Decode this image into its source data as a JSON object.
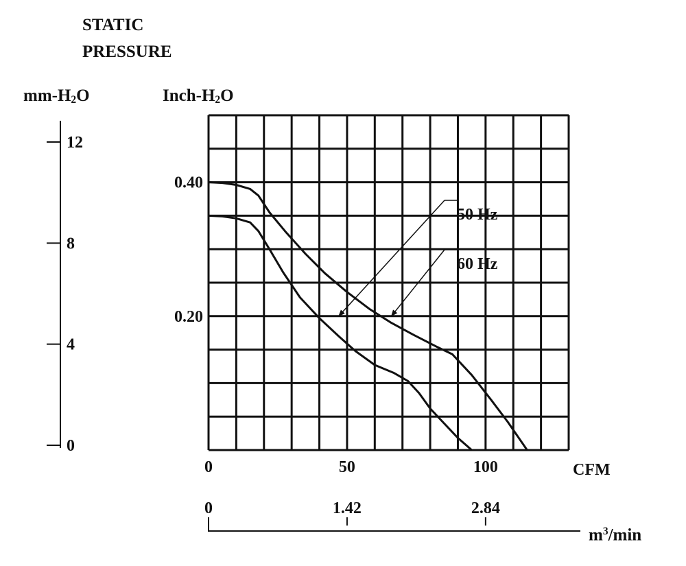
{
  "chart_data": {
    "type": "line",
    "title": "STATIC PRESSURE",
    "title_lines": [
      "STATIC",
      "PRESSURE"
    ],
    "y_left_unit": {
      "main": "mm-H",
      "sub": "2",
      "tail": "O"
    },
    "y_right_unit": {
      "main": "Inch-H",
      "sub": "2",
      "tail": "O"
    },
    "xlabel": "CFM",
    "xlabel2": {
      "main": "m",
      "sup": "3",
      "tail": "/min"
    },
    "xlim": [
      0,
      130
    ],
    "ylim": [
      0,
      0.5
    ],
    "grid": true,
    "x_ticks": [
      {
        "value": 0,
        "label": "0"
      },
      {
        "value": 50,
        "label": "50"
      },
      {
        "value": 100,
        "label": "100"
      }
    ],
    "y_ticks": [
      {
        "value": 0.4,
        "label": "0.40"
      },
      {
        "value": 0.2,
        "label": "0.20"
      }
    ],
    "mm_ticks": [
      {
        "value": 12,
        "label": "12"
      },
      {
        "value": 8,
        "label": "8"
      },
      {
        "value": 4,
        "label": "4"
      },
      {
        "value": 0,
        "label": "0"
      }
    ],
    "m3_ticks": [
      {
        "cfm": 0,
        "label": "0"
      },
      {
        "cfm": 50,
        "label": "1.42"
      },
      {
        "cfm": 100,
        "label": "2.84"
      }
    ],
    "series": [
      {
        "name": "50 Hz",
        "x": [
          0,
          5,
          10,
          15,
          18,
          22,
          27,
          33,
          40,
          47,
          53,
          60,
          67,
          72,
          76,
          80,
          85,
          90,
          95
        ],
        "y": [
          0.35,
          0.349,
          0.346,
          0.34,
          0.327,
          0.3,
          0.265,
          0.228,
          0.197,
          0.17,
          0.148,
          0.127,
          0.115,
          0.103,
          0.085,
          0.062,
          0.04,
          0.018,
          0.0
        ]
      },
      {
        "name": "60 Hz",
        "x": [
          0,
          5,
          10,
          15,
          18,
          22,
          28,
          35,
          42,
          50,
          58,
          66,
          74,
          82,
          88,
          95,
          102,
          108,
          115
        ],
        "y": [
          0.4,
          0.399,
          0.396,
          0.39,
          0.38,
          0.355,
          0.325,
          0.293,
          0.264,
          0.236,
          0.211,
          0.19,
          0.172,
          0.155,
          0.143,
          0.112,
          0.075,
          0.042,
          0.0
        ]
      }
    ],
    "annotations": [
      {
        "series": "50 Hz",
        "text": "50 Hz",
        "x": 47,
        "y": 0.2
      },
      {
        "series": "60 Hz",
        "text": "60 Hz",
        "x": 66,
        "y": 0.2
      }
    ]
  }
}
